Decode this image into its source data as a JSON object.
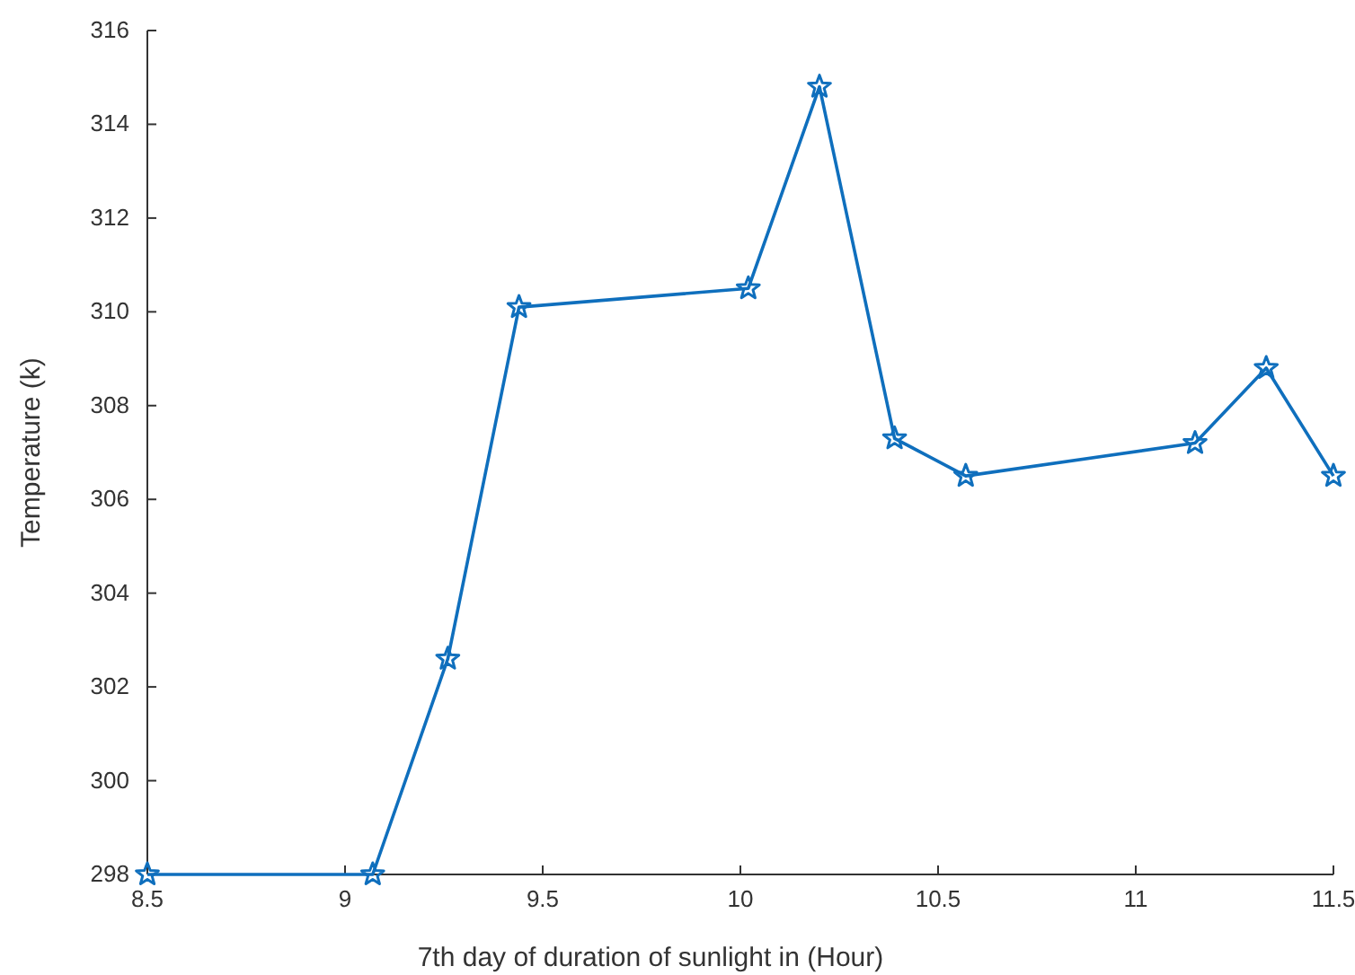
{
  "chart_data": {
    "type": "line",
    "xlabel": "7th day of duration of sunlight in (Hour)",
    "ylabel": "Temperature (k)",
    "xlim": [
      8.5,
      11.5
    ],
    "xticks": [
      8.5,
      9,
      9.5,
      10,
      10.5,
      11,
      11.5
    ],
    "ylim": [
      298,
      316
    ],
    "yticks": [
      298,
      300,
      302,
      304,
      306,
      308,
      310,
      312,
      314,
      316
    ],
    "grid": false,
    "marker": "star",
    "line_style": "solid",
    "series": [
      {
        "color": "#0f6fbd",
        "x": [
          8.5,
          9.07,
          9.26,
          9.44,
          10.02,
          10.2,
          10.39,
          10.57,
          11.15,
          11.33,
          11.5
        ],
        "values": [
          298,
          298,
          302.6,
          310.1,
          310.5,
          314.8,
          307.3,
          306.5,
          307.2,
          308.8,
          306.5
        ]
      }
    ]
  }
}
